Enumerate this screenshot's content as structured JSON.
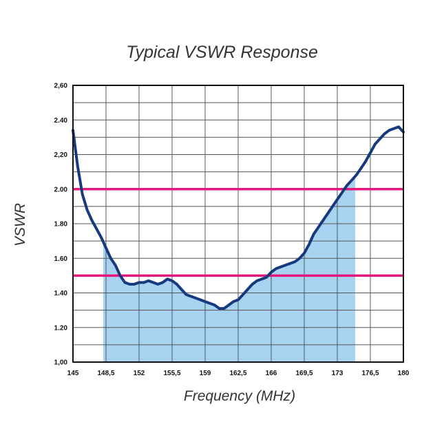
{
  "chart_data": {
    "type": "line",
    "title": "Typical VSWR Response",
    "xlabel": "Frequency (MHz)",
    "ylabel": "VSWR",
    "xlim": [
      145,
      180
    ],
    "ylim": [
      1.0,
      2.6
    ],
    "x_ticks": [
      "145",
      "148,5",
      "152",
      "155,5",
      "159",
      "162,5",
      "166",
      "169,5",
      "173",
      "176,5",
      "180"
    ],
    "y_ticks": [
      "1,00",
      "1.20",
      "1.40",
      "1.60",
      "1.80",
      "2.00",
      "2,20",
      "2.40",
      "2,60"
    ],
    "grid": true,
    "reference_lines": [
      {
        "y": 2.0,
        "color": "#e6157d"
      },
      {
        "y": 1.5,
        "color": "#e6157d"
      }
    ],
    "shaded_band": {
      "x_range": [
        148.2,
        174.9
      ],
      "color": "#a8d3f0"
    },
    "series": [
      {
        "color": "#173a7e",
        "x": [
          145,
          145.5,
          146,
          146.5,
          147,
          147.5,
          148,
          148.5,
          149,
          149.5,
          150,
          150.5,
          151,
          151.5,
          152,
          152.5,
          153,
          153.5,
          154,
          154.5,
          155,
          155.5,
          156,
          156.5,
          157,
          157.5,
          158,
          158.5,
          159,
          159.5,
          160,
          160.5,
          161,
          161.5,
          162,
          162.5,
          163,
          163.5,
          164,
          164.5,
          165,
          165.5,
          166,
          166.5,
          167,
          167.5,
          168,
          168.5,
          169,
          169.5,
          170,
          170.5,
          171,
          171.5,
          172,
          172.5,
          173,
          173.5,
          174,
          174.5,
          175,
          175.5,
          176,
          176.5,
          177,
          177.5,
          178,
          178.5,
          179,
          179.5,
          180
        ],
        "y": [
          2.34,
          2.13,
          1.97,
          1.88,
          1.82,
          1.77,
          1.72,
          1.66,
          1.6,
          1.56,
          1.5,
          1.46,
          1.45,
          1.45,
          1.46,
          1.46,
          1.47,
          1.46,
          1.45,
          1.46,
          1.48,
          1.47,
          1.45,
          1.42,
          1.39,
          1.38,
          1.37,
          1.36,
          1.35,
          1.34,
          1.33,
          1.31,
          1.31,
          1.33,
          1.35,
          1.36,
          1.39,
          1.42,
          1.45,
          1.47,
          1.48,
          1.49,
          1.52,
          1.54,
          1.55,
          1.56,
          1.57,
          1.58,
          1.6,
          1.63,
          1.68,
          1.74,
          1.78,
          1.82,
          1.86,
          1.9,
          1.94,
          1.98,
          2.02,
          2.05,
          2.08,
          2.12,
          2.16,
          2.21,
          2.26,
          2.29,
          2.32,
          2.34,
          2.35,
          2.36,
          2.33
        ]
      }
    ]
  }
}
